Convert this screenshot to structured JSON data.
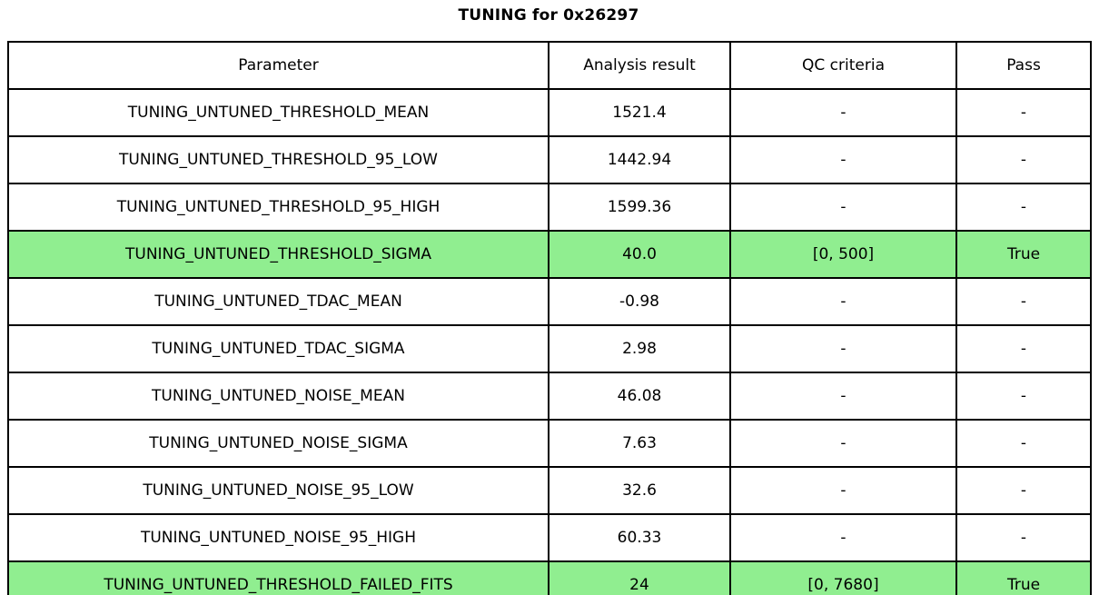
{
  "title": "TUNING for 0x26297",
  "colors": {
    "highlight": "#90EE90",
    "border": "#000000",
    "background": "#FFFFFF"
  },
  "chart_data": {
    "type": "table",
    "title": "TUNING for 0x26297",
    "columns": [
      "Parameter",
      "Analysis result",
      "QC criteria",
      "Pass"
    ],
    "rows": [
      {
        "cells": [
          "TUNING_UNTUNED_THRESHOLD_MEAN",
          "1521.4",
          "-",
          "-"
        ],
        "highlight": false
      },
      {
        "cells": [
          "TUNING_UNTUNED_THRESHOLD_95_LOW",
          "1442.94",
          "-",
          "-"
        ],
        "highlight": false
      },
      {
        "cells": [
          "TUNING_UNTUNED_THRESHOLD_95_HIGH",
          "1599.36",
          "-",
          "-"
        ],
        "highlight": false
      },
      {
        "cells": [
          "TUNING_UNTUNED_THRESHOLD_SIGMA",
          "40.0",
          "[0, 500]",
          "True"
        ],
        "highlight": true
      },
      {
        "cells": [
          "TUNING_UNTUNED_TDAC_MEAN",
          "-0.98",
          "-",
          "-"
        ],
        "highlight": false
      },
      {
        "cells": [
          "TUNING_UNTUNED_TDAC_SIGMA",
          "2.98",
          "-",
          "-"
        ],
        "highlight": false
      },
      {
        "cells": [
          "TUNING_UNTUNED_NOISE_MEAN",
          "46.08",
          "-",
          "-"
        ],
        "highlight": false
      },
      {
        "cells": [
          "TUNING_UNTUNED_NOISE_SIGMA",
          "7.63",
          "-",
          "-"
        ],
        "highlight": false
      },
      {
        "cells": [
          "TUNING_UNTUNED_NOISE_95_LOW",
          "32.6",
          "-",
          "-"
        ],
        "highlight": false
      },
      {
        "cells": [
          "TUNING_UNTUNED_NOISE_95_HIGH",
          "60.33",
          "-",
          "-"
        ],
        "highlight": false
      },
      {
        "cells": [
          "TUNING_UNTUNED_THRESHOLD_FAILED_FITS",
          "24",
          "[0, 7680]",
          "True"
        ],
        "highlight": true
      }
    ],
    "highlight_color": "#90EE90",
    "legend_position": "none",
    "grid": true
  }
}
